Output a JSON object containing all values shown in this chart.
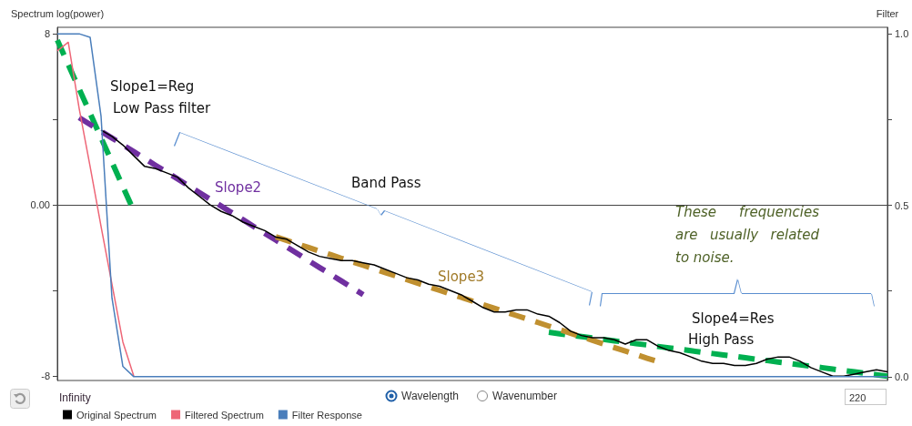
{
  "chart_data": {
    "type": "line",
    "ylabel": "Spectrum log(power)",
    "y2label": "Filter",
    "categories": [
      null,
      null,
      null,
      null,
      null,
      null,
      null,
      null,
      null,
      null,
      null,
      null,
      null,
      null,
      null,
      null,
      null,
      null,
      null,
      null,
      null,
      null,
      null,
      null,
      null,
      null,
      null,
      null,
      null,
      null,
      null,
      null,
      null,
      null,
      null,
      null,
      null,
      null,
      null,
      null,
      null,
      null,
      null,
      null,
      null,
      null,
      null,
      null,
      null,
      null,
      null,
      null,
      null,
      null,
      null,
      null,
      null,
      null,
      null,
      null,
      null,
      null,
      null,
      null,
      null,
      null,
      null,
      null,
      null,
      null,
      null,
      null,
      null,
      null,
      null,
      null,
      null
    ],
    "ylim": [
      -8.2,
      8.3
    ],
    "yticks": [
      8,
      {
        "value": 4,
        "label": null
      },
      {
        "value": 0,
        "label": "0.00"
      },
      {
        "value": -4,
        "label": null
      },
      -8
    ],
    "y2lim": [
      -0.011,
      1.019
    ],
    "y2ticks": [
      {
        "value": 1,
        "label": "1.0"
      },
      {
        "value": 0.75,
        "label": null
      },
      0.5,
      {
        "value": 0.25,
        "label": null
      },
      {
        "value": 0,
        "label": "0.0"
      }
    ],
    "legend": "bottom left",
    "series": [
      {
        "name": "Original Spectrum",
        "color": "#000000",
        "line_style": "solid",
        "values": [
          null,
          null,
          null,
          null,
          3.5,
          3.2,
          2.8,
          2.3,
          1.8,
          1.7,
          1.5,
          1.3,
          0.8,
          0.4,
          0.0,
          -0.3,
          -0.5,
          -0.8,
          -1.0,
          -1.2,
          -1.5,
          -1.6,
          -1.9,
          -2.2,
          -2.4,
          -2.5,
          -2.6,
          -2.6,
          -2.7,
          -2.8,
          -3.0,
          -3.2,
          -3.4,
          -3.5,
          -3.7,
          -3.8,
          -4.0,
          -4.2,
          -4.5,
          -4.8,
          -5.0,
          -5.0,
          -4.9,
          -4.9,
          -5.1,
          -5.2,
          -5.5,
          -5.9,
          -6.1,
          -6.2,
          -6.2,
          -6.3,
          -6.5,
          -6.3,
          -6.3,
          -6.6,
          -6.8,
          -6.9,
          -7.1,
          -7.3,
          -7.4,
          -7.4,
          -7.5,
          -7.5,
          -7.4,
          -7.2,
          -7.1,
          -7.1,
          -7.3,
          -7.6,
          -7.8,
          -8.0,
          -8.0,
          -7.9,
          -7.8,
          -7.7,
          -7.8
        ]
      },
      {
        "name": "Filtered Spectrum",
        "color": "#ee6677",
        "line_style": "solid",
        "values": [
          7.2,
          7.6,
          4.5,
          1.8,
          -1.0,
          -3.7,
          -6.4,
          -8.0,
          null,
          null,
          null,
          null,
          null,
          null,
          null,
          null,
          null,
          null,
          null,
          null,
          null,
          null,
          null,
          null,
          null,
          null,
          null,
          null,
          null,
          null,
          null,
          null,
          null,
          null,
          null,
          null,
          null,
          null,
          null,
          null,
          null,
          null,
          null,
          null,
          null,
          null,
          null,
          null,
          null,
          null,
          null,
          null,
          null,
          null,
          null,
          null,
          null,
          null,
          null,
          null,
          null,
          null,
          null,
          null,
          null,
          null,
          null,
          null,
          null,
          null,
          null,
          null,
          null,
          null,
          null,
          null,
          null
        ]
      },
      {
        "name": "Filter Response",
        "color": "#4a7ebb",
        "line_style": "solid",
        "axis": "y2",
        "values": [
          1.0,
          1.0,
          1.0,
          0.99,
          0.76,
          0.23,
          0.03,
          0,
          0,
          0,
          0,
          0,
          0,
          0,
          0,
          0,
          0,
          0,
          0,
          0,
          0,
          0,
          0,
          0,
          0,
          0,
          0,
          0,
          0,
          0,
          0,
          0,
          0,
          0,
          0,
          0,
          0,
          0,
          0,
          0,
          0,
          0,
          0,
          0,
          0,
          0,
          0,
          0,
          0,
          0,
          0,
          0,
          0,
          0,
          0,
          0,
          0,
          0,
          0,
          0,
          0,
          0,
          0,
          0,
          0,
          0,
          0,
          0,
          0,
          0,
          0,
          0,
          0,
          0,
          0,
          0,
          0
        ]
      },
      {
        "color": "#00b050",
        "line_style": "dashed",
        "values": [
          7.7,
          6.56,
          5.42,
          4.28,
          3.14,
          2.0,
          0.86,
          -0.28,
          null,
          null,
          null,
          null,
          null,
          null,
          null,
          null,
          null,
          null,
          null,
          null,
          null,
          null,
          null,
          null,
          null,
          null,
          null,
          null,
          null,
          null,
          null,
          null,
          null,
          null,
          null,
          null,
          null,
          null,
          null,
          null,
          null,
          null,
          null,
          null,
          null,
          -5.95,
          -6.02,
          -6.08,
          -6.15,
          -6.21,
          -6.28,
          -6.35,
          -6.41,
          -6.48,
          -6.54,
          -6.61,
          -6.68,
          -6.74,
          -6.81,
          -6.88,
          -6.94,
          -7.01,
          -7.07,
          -7.14,
          -7.21,
          -7.27,
          -7.34,
          -7.4,
          -7.47,
          -7.54,
          -7.6,
          -7.67,
          -7.74,
          -7.8,
          -7.87,
          -7.93,
          -8.0
        ]
      },
      {
        "color": "#7030a0",
        "line_style": "dashed",
        "values": [
          null,
          null,
          4.08,
          3.76,
          3.44,
          3.13,
          2.81,
          2.49,
          2.17,
          1.85,
          1.54,
          1.22,
          0.9,
          0.58,
          0.26,
          -0.05,
          -0.37,
          -0.69,
          -1.01,
          -1.33,
          -1.64,
          -1.96,
          -2.28,
          -2.6,
          -2.92,
          -3.23,
          -3.55,
          -3.87,
          -4.19,
          null,
          null,
          null,
          null,
          null,
          null,
          null,
          null,
          null,
          null,
          null,
          null,
          null,
          null,
          null,
          null,
          null,
          null,
          null,
          null,
          null,
          null,
          null,
          null,
          null,
          null,
          null,
          null,
          null,
          null,
          null,
          null,
          null,
          null,
          null,
          null,
          null,
          null,
          null,
          null,
          null,
          null,
          null,
          null,
          null,
          null,
          null,
          null
        ]
      },
      {
        "color": "#c09030",
        "line_style": "dashed",
        "values": [
          null,
          null,
          null,
          null,
          null,
          null,
          null,
          null,
          null,
          null,
          null,
          null,
          null,
          null,
          null,
          null,
          null,
          null,
          null,
          null,
          -1.49,
          -1.66,
          -1.82,
          -1.99,
          -2.16,
          -2.32,
          -2.49,
          -2.66,
          -2.82,
          -2.99,
          -3.16,
          -3.32,
          -3.49,
          -3.66,
          -3.82,
          -3.99,
          -4.16,
          -4.32,
          -4.49,
          -4.66,
          -4.82,
          -4.99,
          -5.16,
          -5.32,
          -5.49,
          -5.66,
          -5.82,
          -5.99,
          -6.16,
          -6.32,
          -6.49,
          -6.66,
          -6.82,
          -6.99,
          -7.16,
          -7.32,
          null,
          null,
          null,
          null,
          null,
          null,
          null,
          null,
          null,
          null,
          null,
          null,
          null,
          null,
          null,
          null,
          null,
          null,
          null,
          null,
          null
        ]
      }
    ],
    "annotations": [
      "Slope1=Reg",
      "Low Pass filter",
      "Slope2",
      "Band Pass",
      "Slope3",
      "These frequencies are usually related to noise.",
      "Slope4=Res",
      "High Pass",
      "Wavelength",
      "Wavenumber",
      "Infinity",
      "220"
    ]
  }
}
